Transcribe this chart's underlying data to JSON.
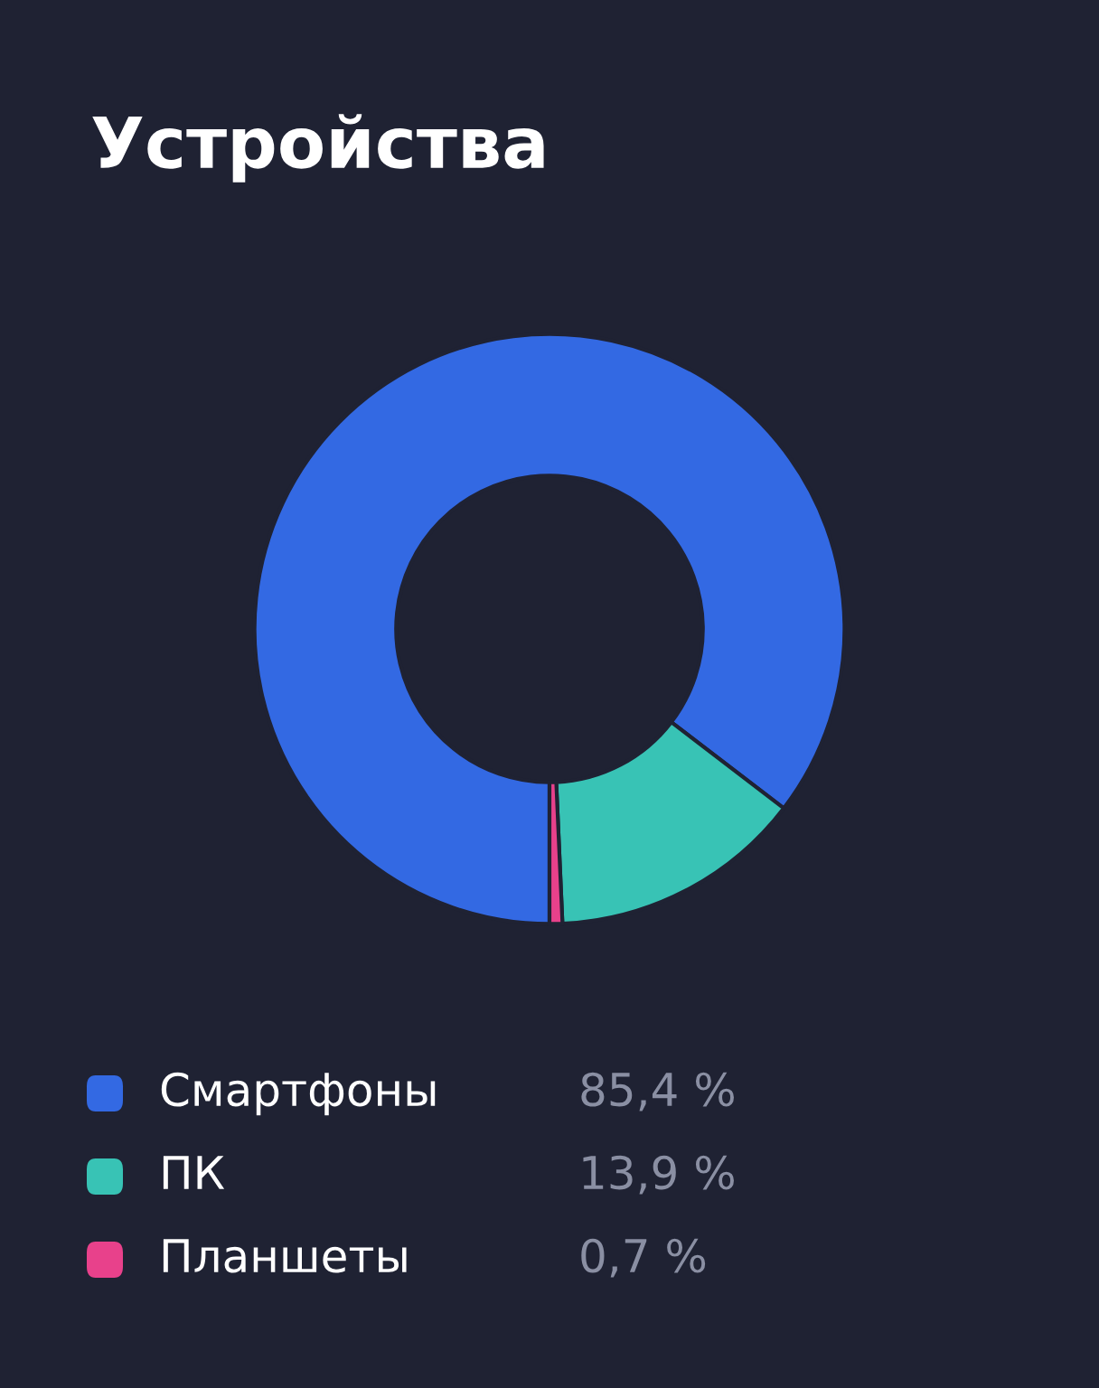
{
  "chart_data": {
    "type": "donut",
    "title": "Устройства",
    "categories": [
      "Смартфоны",
      "ПК",
      "Планшеты"
    ],
    "values": [
      85.4,
      13.9,
      0.7
    ],
    "value_labels": [
      "85,4 %",
      "13,9 %",
      "0,7 %"
    ],
    "colors": [
      "#3369e3",
      "#38c3b5",
      "#e8418b"
    ],
    "legend": "bottom"
  }
}
